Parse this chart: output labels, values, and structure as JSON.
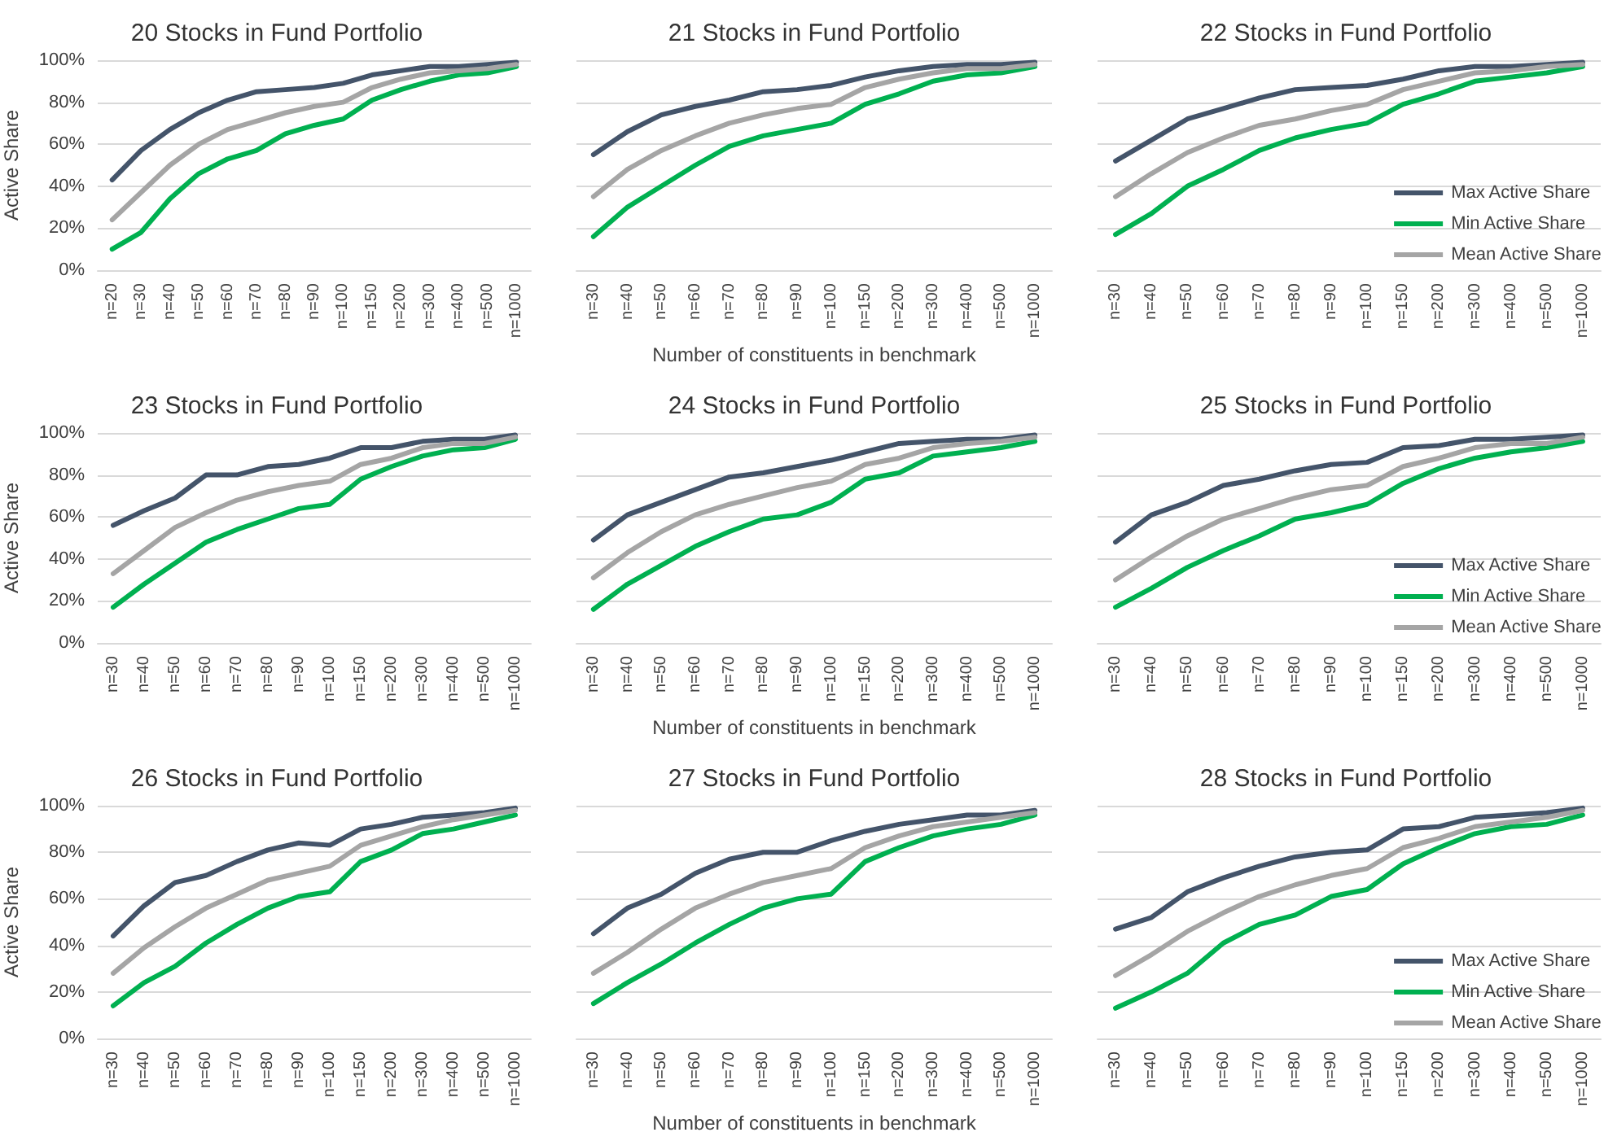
{
  "chart_data": [
    {
      "type": "line",
      "title": "20 Stocks in Fund Portfolio",
      "ylabel": "Active Share",
      "categories": [
        "n=20",
        "n=30",
        "n=40",
        "n=50",
        "n=60",
        "n=70",
        "n=80",
        "n=90",
        "n=100",
        "n=150",
        "n=200",
        "n=300",
        "n=400",
        "n=500",
        "n=1000"
      ],
      "ylim": [
        0,
        100
      ],
      "yticks": [
        {
          "value": 0,
          "label": "0%"
        },
        {
          "value": 20,
          "label": "20%"
        },
        {
          "value": 40,
          "label": "40%"
        },
        {
          "value": 60,
          "label": "60%"
        },
        {
          "value": 80,
          "label": "80%"
        },
        {
          "value": 100,
          "label": "100%"
        }
      ],
      "grid": "y",
      "legend": false,
      "marker": "none",
      "line_style": "solid",
      "series": [
        {
          "color": "#44546a",
          "values": [
            43,
            57,
            67,
            75,
            81,
            85,
            86,
            87,
            89,
            93,
            95,
            97,
            97,
            98,
            99
          ]
        },
        {
          "color": "#00b050",
          "values": [
            10,
            18,
            34,
            46,
            53,
            57,
            65,
            69,
            72,
            81,
            86,
            90,
            93,
            94,
            97
          ]
        },
        {
          "color": "#a5a5a5",
          "values": [
            24,
            37,
            50,
            60,
            67,
            71,
            75,
            78,
            80,
            87,
            91,
            94,
            95,
            96,
            98
          ]
        }
      ]
    },
    {
      "type": "line",
      "title": "21 Stocks in Fund Portfolio",
      "xlabel": "Number of constituents in benchmark",
      "categories": [
        "n=30",
        "n=40",
        "n=50",
        "n=60",
        "n=70",
        "n=80",
        "n=90",
        "n=100",
        "n=150",
        "n=200",
        "n=300",
        "n=400",
        "n=500",
        "n=1000"
      ],
      "ylim": [
        0,
        100
      ],
      "yticks": [
        0,
        20,
        40,
        60,
        80,
        100
      ],
      "tick_labels": "x",
      "grid": "y",
      "legend": false,
      "marker": "none",
      "line_style": "solid",
      "series": [
        {
          "color": "#44546a",
          "values": [
            55,
            66,
            74,
            78,
            81,
            85,
            86,
            88,
            92,
            95,
            97,
            98,
            98,
            99
          ]
        },
        {
          "color": "#00b050",
          "values": [
            16,
            30,
            40,
            50,
            59,
            64,
            67,
            70,
            79,
            84,
            90,
            93,
            94,
            97
          ]
        },
        {
          "color": "#a5a5a5",
          "values": [
            35,
            48,
            57,
            64,
            70,
            74,
            77,
            79,
            87,
            91,
            94,
            96,
            96,
            98
          ]
        }
      ]
    },
    {
      "type": "line",
      "title": "22 Stocks in Fund Portfolio",
      "categories": [
        "n=30",
        "n=40",
        "n=50",
        "n=60",
        "n=70",
        "n=80",
        "n=90",
        "n=100",
        "n=150",
        "n=200",
        "n=300",
        "n=400",
        "n=500",
        "n=1000"
      ],
      "ylim": [
        0,
        100
      ],
      "yticks": [
        0,
        20,
        40,
        60,
        80,
        100
      ],
      "tick_labels": "x",
      "grid": "y",
      "legend": "bottom right",
      "marker": "none",
      "line_style": "solid",
      "series": [
        {
          "name": "Max Active Share",
          "color": "#44546a",
          "values": [
            52,
            62,
            72,
            77,
            82,
            86,
            87,
            88,
            91,
            95,
            97,
            97,
            98,
            99
          ]
        },
        {
          "name": "Min Active Share",
          "color": "#00b050",
          "values": [
            17,
            27,
            40,
            48,
            57,
            63,
            67,
            70,
            79,
            84,
            90,
            92,
            94,
            97
          ]
        },
        {
          "name": "Mean Active Share",
          "color": "#a5a5a5",
          "values": [
            35,
            46,
            56,
            63,
            69,
            72,
            76,
            79,
            86,
            90,
            94,
            95,
            97,
            98
          ]
        }
      ]
    },
    {
      "type": "line",
      "title": "23 Stocks in Fund Portfolio",
      "ylabel": "Active Share",
      "categories": [
        "n=30",
        "n=40",
        "n=50",
        "n=60",
        "n=70",
        "n=80",
        "n=90",
        "n=100",
        "n=150",
        "n=200",
        "n=300",
        "n=400",
        "n=500",
        "n=1000"
      ],
      "ylim": [
        0,
        100
      ],
      "yticks": [
        {
          "value": 0,
          "label": "0%"
        },
        {
          "value": 20,
          "label": "20%"
        },
        {
          "value": 40,
          "label": "40%"
        },
        {
          "value": 60,
          "label": "60%"
        },
        {
          "value": 80,
          "label": "80%"
        },
        {
          "value": 100,
          "label": "100%"
        }
      ],
      "grid": "y",
      "legend": false,
      "marker": "none",
      "line_style": "solid",
      "series": [
        {
          "color": "#44546a",
          "values": [
            56,
            63,
            69,
            80,
            80,
            84,
            85,
            88,
            93,
            93,
            96,
            97,
            97,
            99
          ]
        },
        {
          "color": "#00b050",
          "values": [
            17,
            28,
            38,
            48,
            54,
            59,
            64,
            66,
            78,
            84,
            89,
            92,
            93,
            97
          ]
        },
        {
          "color": "#a5a5a5",
          "values": [
            33,
            44,
            55,
            62,
            68,
            72,
            75,
            77,
            85,
            88,
            93,
            95,
            95,
            98
          ]
        }
      ]
    },
    {
      "type": "line",
      "title": "24 Stocks in Fund Portfolio",
      "xlabel": "Number of constituents in benchmark",
      "categories": [
        "n=30",
        "n=40",
        "n=50",
        "n=60",
        "n=70",
        "n=80",
        "n=90",
        "n=100",
        "n=150",
        "n=200",
        "n=300",
        "n=400",
        "n=500",
        "n=1000"
      ],
      "ylim": [
        0,
        100
      ],
      "yticks": [
        0,
        20,
        40,
        60,
        80,
        100
      ],
      "tick_labels": "x",
      "grid": "y",
      "legend": false,
      "marker": "none",
      "line_style": "solid",
      "series": [
        {
          "color": "#44546a",
          "values": [
            49,
            61,
            67,
            73,
            79,
            81,
            84,
            87,
            91,
            95,
            96,
            97,
            97,
            99
          ]
        },
        {
          "color": "#00b050",
          "values": [
            16,
            28,
            37,
            46,
            53,
            59,
            61,
            67,
            78,
            81,
            89,
            91,
            93,
            96
          ]
        },
        {
          "color": "#a5a5a5",
          "values": [
            31,
            43,
            53,
            61,
            66,
            70,
            74,
            77,
            85,
            88,
            93,
            95,
            96,
            98
          ]
        }
      ]
    },
    {
      "type": "line",
      "title": "25 Stocks in Fund Portfolio",
      "categories": [
        "n=30",
        "n=40",
        "n=50",
        "n=60",
        "n=70",
        "n=80",
        "n=90",
        "n=100",
        "n=150",
        "n=200",
        "n=300",
        "n=400",
        "n=500",
        "n=1000"
      ],
      "ylim": [
        0,
        100
      ],
      "yticks": [
        0,
        20,
        40,
        60,
        80,
        100
      ],
      "tick_labels": "x",
      "grid": "y",
      "legend": "bottom right",
      "marker": "none",
      "line_style": "solid",
      "series": [
        {
          "name": "Max Active Share",
          "color": "#44546a",
          "values": [
            48,
            61,
            67,
            75,
            78,
            82,
            85,
            86,
            93,
            94,
            97,
            97,
            98,
            99
          ]
        },
        {
          "name": "Min Active Share",
          "color": "#00b050",
          "values": [
            17,
            26,
            36,
            44,
            51,
            59,
            62,
            66,
            76,
            83,
            88,
            91,
            93,
            96
          ]
        },
        {
          "name": "Mean Active Share",
          "color": "#a5a5a5",
          "values": [
            30,
            41,
            51,
            59,
            64,
            69,
            73,
            75,
            84,
            88,
            93,
            95,
            95,
            98
          ]
        }
      ]
    },
    {
      "type": "line",
      "title": "26 Stocks in Fund Portfolio",
      "ylabel": "Active Share",
      "categories": [
        "n=30",
        "n=40",
        "n=50",
        "n=60",
        "n=70",
        "n=80",
        "n=90",
        "n=100",
        "n=150",
        "n=200",
        "n=300",
        "n=400",
        "n=500",
        "n=1000"
      ],
      "ylim": [
        0,
        100
      ],
      "yticks": [
        {
          "value": 0,
          "label": "0%"
        },
        {
          "value": 20,
          "label": "20%"
        },
        {
          "value": 40,
          "label": "40%"
        },
        {
          "value": 60,
          "label": "60%"
        },
        {
          "value": 80,
          "label": "80%"
        },
        {
          "value": 100,
          "label": "100%"
        }
      ],
      "grid": "y",
      "legend": false,
      "marker": "none",
      "line_style": "solid",
      "series": [
        {
          "color": "#44546a",
          "values": [
            44,
            57,
            67,
            70,
            76,
            81,
            84,
            83,
            90,
            92,
            95,
            96,
            97,
            99
          ]
        },
        {
          "color": "#00b050",
          "values": [
            14,
            24,
            31,
            41,
            49,
            56,
            61,
            63,
            76,
            81,
            88,
            90,
            93,
            96
          ]
        },
        {
          "color": "#a5a5a5",
          "values": [
            28,
            39,
            48,
            56,
            62,
            68,
            71,
            74,
            83,
            87,
            91,
            94,
            96,
            98
          ]
        }
      ]
    },
    {
      "type": "line",
      "title": "27 Stocks in Fund Portfolio",
      "xlabel": "Number of constituents in benchmark",
      "categories": [
        "n=30",
        "n=40",
        "n=50",
        "n=60",
        "n=70",
        "n=80",
        "n=90",
        "n=100",
        "n=150",
        "n=200",
        "n=300",
        "n=400",
        "n=500",
        "n=1000"
      ],
      "ylim": [
        0,
        100
      ],
      "yticks": [
        0,
        20,
        40,
        60,
        80,
        100
      ],
      "tick_labels": "x",
      "grid": "y",
      "legend": false,
      "marker": "none",
      "line_style": "solid",
      "series": [
        {
          "color": "#44546a",
          "values": [
            45,
            56,
            62,
            71,
            77,
            80,
            80,
            85,
            89,
            92,
            94,
            96,
            96,
            98
          ]
        },
        {
          "color": "#00b050",
          "values": [
            15,
            24,
            32,
            41,
            49,
            56,
            60,
            62,
            76,
            82,
            87,
            90,
            92,
            96
          ]
        },
        {
          "color": "#a5a5a5",
          "values": [
            28,
            37,
            47,
            56,
            62,
            67,
            70,
            73,
            82,
            87,
            91,
            93,
            95,
            97
          ]
        }
      ]
    },
    {
      "type": "line",
      "title": "28 Stocks in Fund Portfolio",
      "categories": [
        "n=30",
        "n=40",
        "n=50",
        "n=60",
        "n=70",
        "n=80",
        "n=90",
        "n=100",
        "n=150",
        "n=200",
        "n=300",
        "n=400",
        "n=500",
        "n=1000"
      ],
      "ylim": [
        0,
        100
      ],
      "yticks": [
        0,
        20,
        40,
        60,
        80,
        100
      ],
      "tick_labels": "x",
      "grid": "y",
      "legend": "bottom right",
      "marker": "none",
      "line_style": "solid",
      "series": [
        {
          "name": "Max Active Share",
          "color": "#44546a",
          "values": [
            47,
            52,
            63,
            69,
            74,
            78,
            80,
            81,
            90,
            91,
            95,
            96,
            97,
            99
          ]
        },
        {
          "name": "Min Active Share",
          "color": "#00b050",
          "values": [
            13,
            20,
            28,
            41,
            49,
            53,
            61,
            64,
            75,
            82,
            88,
            91,
            92,
            96
          ]
        },
        {
          "name": "Mean Active Share",
          "color": "#a5a5a5",
          "values": [
            27,
            36,
            46,
            54,
            61,
            66,
            70,
            73,
            82,
            86,
            91,
            93,
            95,
            98
          ]
        }
      ]
    }
  ]
}
